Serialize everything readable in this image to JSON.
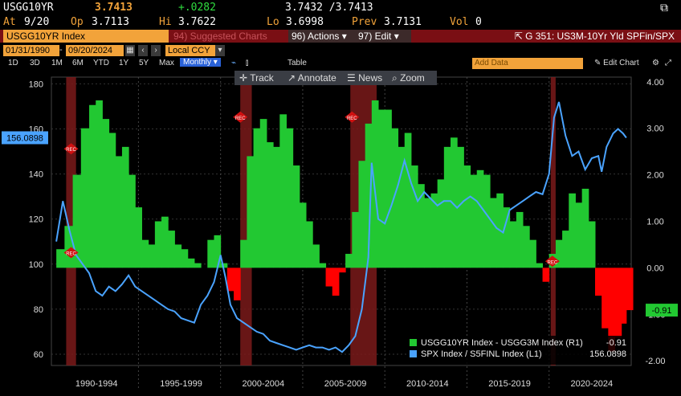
{
  "header": {
    "ticker": "USGG10YR",
    "last": "3.7413",
    "change": "+.0282",
    "bid_ask": "3.7432 /3.7413",
    "at_label": "At",
    "date": "9/20",
    "op_label": "Op",
    "op": "3.7113",
    "hi_label": "Hi",
    "hi": "3.7622",
    "lo_label": "Lo",
    "lo": "3.6998",
    "prev_label": "Prev",
    "prev": "3.7131",
    "vol_label": "Vol",
    "vol": "0"
  },
  "toolbar": {
    "security": "USGG10YR Index",
    "suggested": "94) Suggested Charts",
    "actions": "96) Actions",
    "edit": "97) Edit",
    "graph_title": "G 351: US3M-10Yr Yld SPFin/SPX"
  },
  "range": {
    "start": "01/31/1990",
    "end": "09/20/2024",
    "currency": "Local CCY"
  },
  "periods": [
    "1D",
    "3D",
    "1M",
    "6M",
    "YTD",
    "1Y",
    "5Y",
    "Max"
  ],
  "frequency": "Monthly",
  "table_label": "Table",
  "add_data_placeholder": "Add Data",
  "edit_chart": "Edit Chart",
  "float_toolbar": {
    "track": "Track",
    "annotate": "Annotate",
    "news": "News",
    "zoom": "Zoom"
  },
  "legend": [
    {
      "label": "USGG10YR Index - USGG3M Index (R1)",
      "value": "-0.91",
      "color": "#22c832"
    },
    {
      "label": "SPX Index / S5FINL Index (L1)",
      "value": "156.0898",
      "color": "#4aa3ff"
    }
  ],
  "last_labels": {
    "left": "156.0898",
    "right": "-0.91"
  },
  "recession_label": "REC",
  "colors": {
    "spread_pos": "#22c832",
    "spread_neg": "#ff0000",
    "ratio": "#4aa3ff",
    "recession": "#7a1a1a",
    "amber": "#f2a33a"
  },
  "chart_data": {
    "type": "area",
    "x_categories": [
      "1990-1994",
      "1995-1999",
      "2000-2004",
      "2005-2009",
      "2010-2014",
      "2015-2019",
      "2020-2024"
    ],
    "left_axis": {
      "series": "SPX Index / S5FINL Index (L1)",
      "ticks": [
        60,
        80,
        100,
        120,
        140,
        160,
        180
      ],
      "range": [
        55,
        183
      ]
    },
    "right_axis": {
      "series": "USGG10YR Index - USGG3M Index (R1)",
      "ticks": [
        "-2.00",
        "-1.00",
        "0.00",
        "1.00",
        "2.00",
        "3.00",
        "4.00"
      ],
      "range": [
        -2.1,
        4.1
      ]
    },
    "recessions": [
      {
        "start": 1990.6,
        "end": 1991.2
      },
      {
        "start": 2001.2,
        "end": 2001.9
      },
      {
        "start": 2007.9,
        "end": 2009.5
      },
      {
        "start": 2020.1,
        "end": 2020.4
      }
    ],
    "series": [
      {
        "name": "USGG10YR Index - USGG3M Index (R1)",
        "x": [
          1990.0,
          1990.5,
          1991.0,
          1991.5,
          1992.0,
          1992.4,
          1992.8,
          1993.2,
          1993.6,
          1994.0,
          1994.4,
          1994.8,
          1995.2,
          1995.6,
          1996.0,
          1996.4,
          1996.8,
          1997.2,
          1997.6,
          1998.0,
          1998.4,
          1998.8,
          1999.2,
          1999.6,
          2000.0,
          2000.4,
          2000.8,
          2001.2,
          2001.6,
          2002.0,
          2002.4,
          2002.8,
          2003.2,
          2003.6,
          2004.0,
          2004.4,
          2004.8,
          2005.2,
          2005.6,
          2006.0,
          2006.4,
          2006.8,
          2007.2,
          2007.6,
          2008.0,
          2008.4,
          2008.8,
          2009.2,
          2009.6,
          2010.0,
          2010.4,
          2010.8,
          2011.2,
          2011.6,
          2012.0,
          2012.4,
          2012.8,
          2013.2,
          2013.6,
          2014.0,
          2014.4,
          2014.8,
          2015.2,
          2015.6,
          2016.0,
          2016.4,
          2016.8,
          2017.2,
          2017.6,
          2018.0,
          2018.4,
          2018.8,
          2019.2,
          2019.6,
          2020.0,
          2020.4,
          2020.8,
          2021.2,
          2021.6,
          2022.0,
          2022.4,
          2022.8,
          2023.2,
          2023.6,
          2024.0,
          2024.4,
          2024.7
        ],
        "values": [
          0.4,
          0.9,
          2.0,
          3.0,
          3.5,
          3.6,
          3.2,
          2.9,
          2.4,
          2.6,
          2.0,
          1.3,
          0.6,
          0.5,
          1.0,
          1.1,
          0.8,
          0.5,
          0.4,
          0.2,
          0.1,
          0.0,
          0.6,
          0.7,
          0.1,
          -0.5,
          -0.7,
          0.6,
          2.4,
          3.0,
          3.2,
          2.7,
          2.6,
          3.3,
          3.0,
          2.2,
          1.4,
          1.0,
          0.5,
          0.1,
          -0.4,
          -0.6,
          -0.1,
          0.3,
          1.2,
          2.3,
          3.1,
          3.6,
          3.4,
          3.4,
          3.0,
          2.6,
          2.9,
          2.2,
          1.8,
          1.5,
          1.6,
          1.9,
          2.6,
          2.8,
          2.6,
          2.2,
          2.0,
          2.1,
          2.0,
          1.5,
          1.6,
          1.3,
          1.0,
          1.2,
          0.9,
          0.6,
          0.1,
          -0.3,
          0.3,
          0.6,
          0.8,
          1.6,
          1.4,
          1.7,
          1.0,
          -0.6,
          -1.3,
          -1.8,
          -1.5,
          -1.2,
          -0.91
        ]
      },
      {
        "name": "SPX Index / S5FINL Index (L1)",
        "x": [
          1990.0,
          1990.4,
          1990.8,
          1991.2,
          1991.6,
          1992.0,
          1992.4,
          1992.8,
          1993.2,
          1993.6,
          1994.0,
          1994.4,
          1994.8,
          1995.2,
          1995.6,
          1996.0,
          1996.4,
          1996.8,
          1997.2,
          1997.6,
          1998.0,
          1998.4,
          1998.8,
          1999.2,
          1999.6,
          2000.0,
          2000.3,
          2000.6,
          2001.0,
          2001.4,
          2001.8,
          2002.2,
          2002.6,
          2003.0,
          2003.4,
          2003.8,
          2004.2,
          2004.6,
          2005.0,
          2005.4,
          2005.8,
          2006.2,
          2006.6,
          2007.0,
          2007.4,
          2007.8,
          2008.2,
          2008.6,
          2009.0,
          2009.2,
          2009.6,
          2010.0,
          2010.4,
          2010.8,
          2011.2,
          2011.6,
          2012.0,
          2012.4,
          2012.8,
          2013.2,
          2013.6,
          2014.0,
          2014.4,
          2014.8,
          2015.2,
          2015.6,
          2016.0,
          2016.4,
          2016.8,
          2017.2,
          2017.6,
          2018.0,
          2018.4,
          2018.8,
          2019.2,
          2019.6,
          2020.0,
          2020.3,
          2020.6,
          2021.0,
          2021.4,
          2021.8,
          2022.2,
          2022.6,
          2023.0,
          2023.2,
          2023.5,
          2023.9,
          2024.2,
          2024.5,
          2024.7
        ],
        "values": [
          110,
          128,
          115,
          104,
          100,
          96,
          88,
          86,
          90,
          88,
          91,
          95,
          90,
          88,
          86,
          84,
          82,
          80,
          79,
          76,
          75,
          74,
          82,
          86,
          92,
          104,
          94,
          82,
          76,
          74,
          72,
          70,
          69,
          66,
          65,
          64,
          63,
          62,
          63,
          64,
          63,
          63,
          62,
          63,
          61,
          64,
          68,
          80,
          103,
          145,
          120,
          118,
          126,
          135,
          146,
          136,
          128,
          132,
          129,
          126,
          128,
          128,
          125,
          128,
          130,
          128,
          124,
          120,
          116,
          114,
          124,
          126,
          128,
          130,
          132,
          131,
          140,
          165,
          172,
          157,
          148,
          150,
          142,
          147,
          148,
          141,
          152,
          158,
          160,
          158,
          156.0898
        ]
      }
    ]
  }
}
